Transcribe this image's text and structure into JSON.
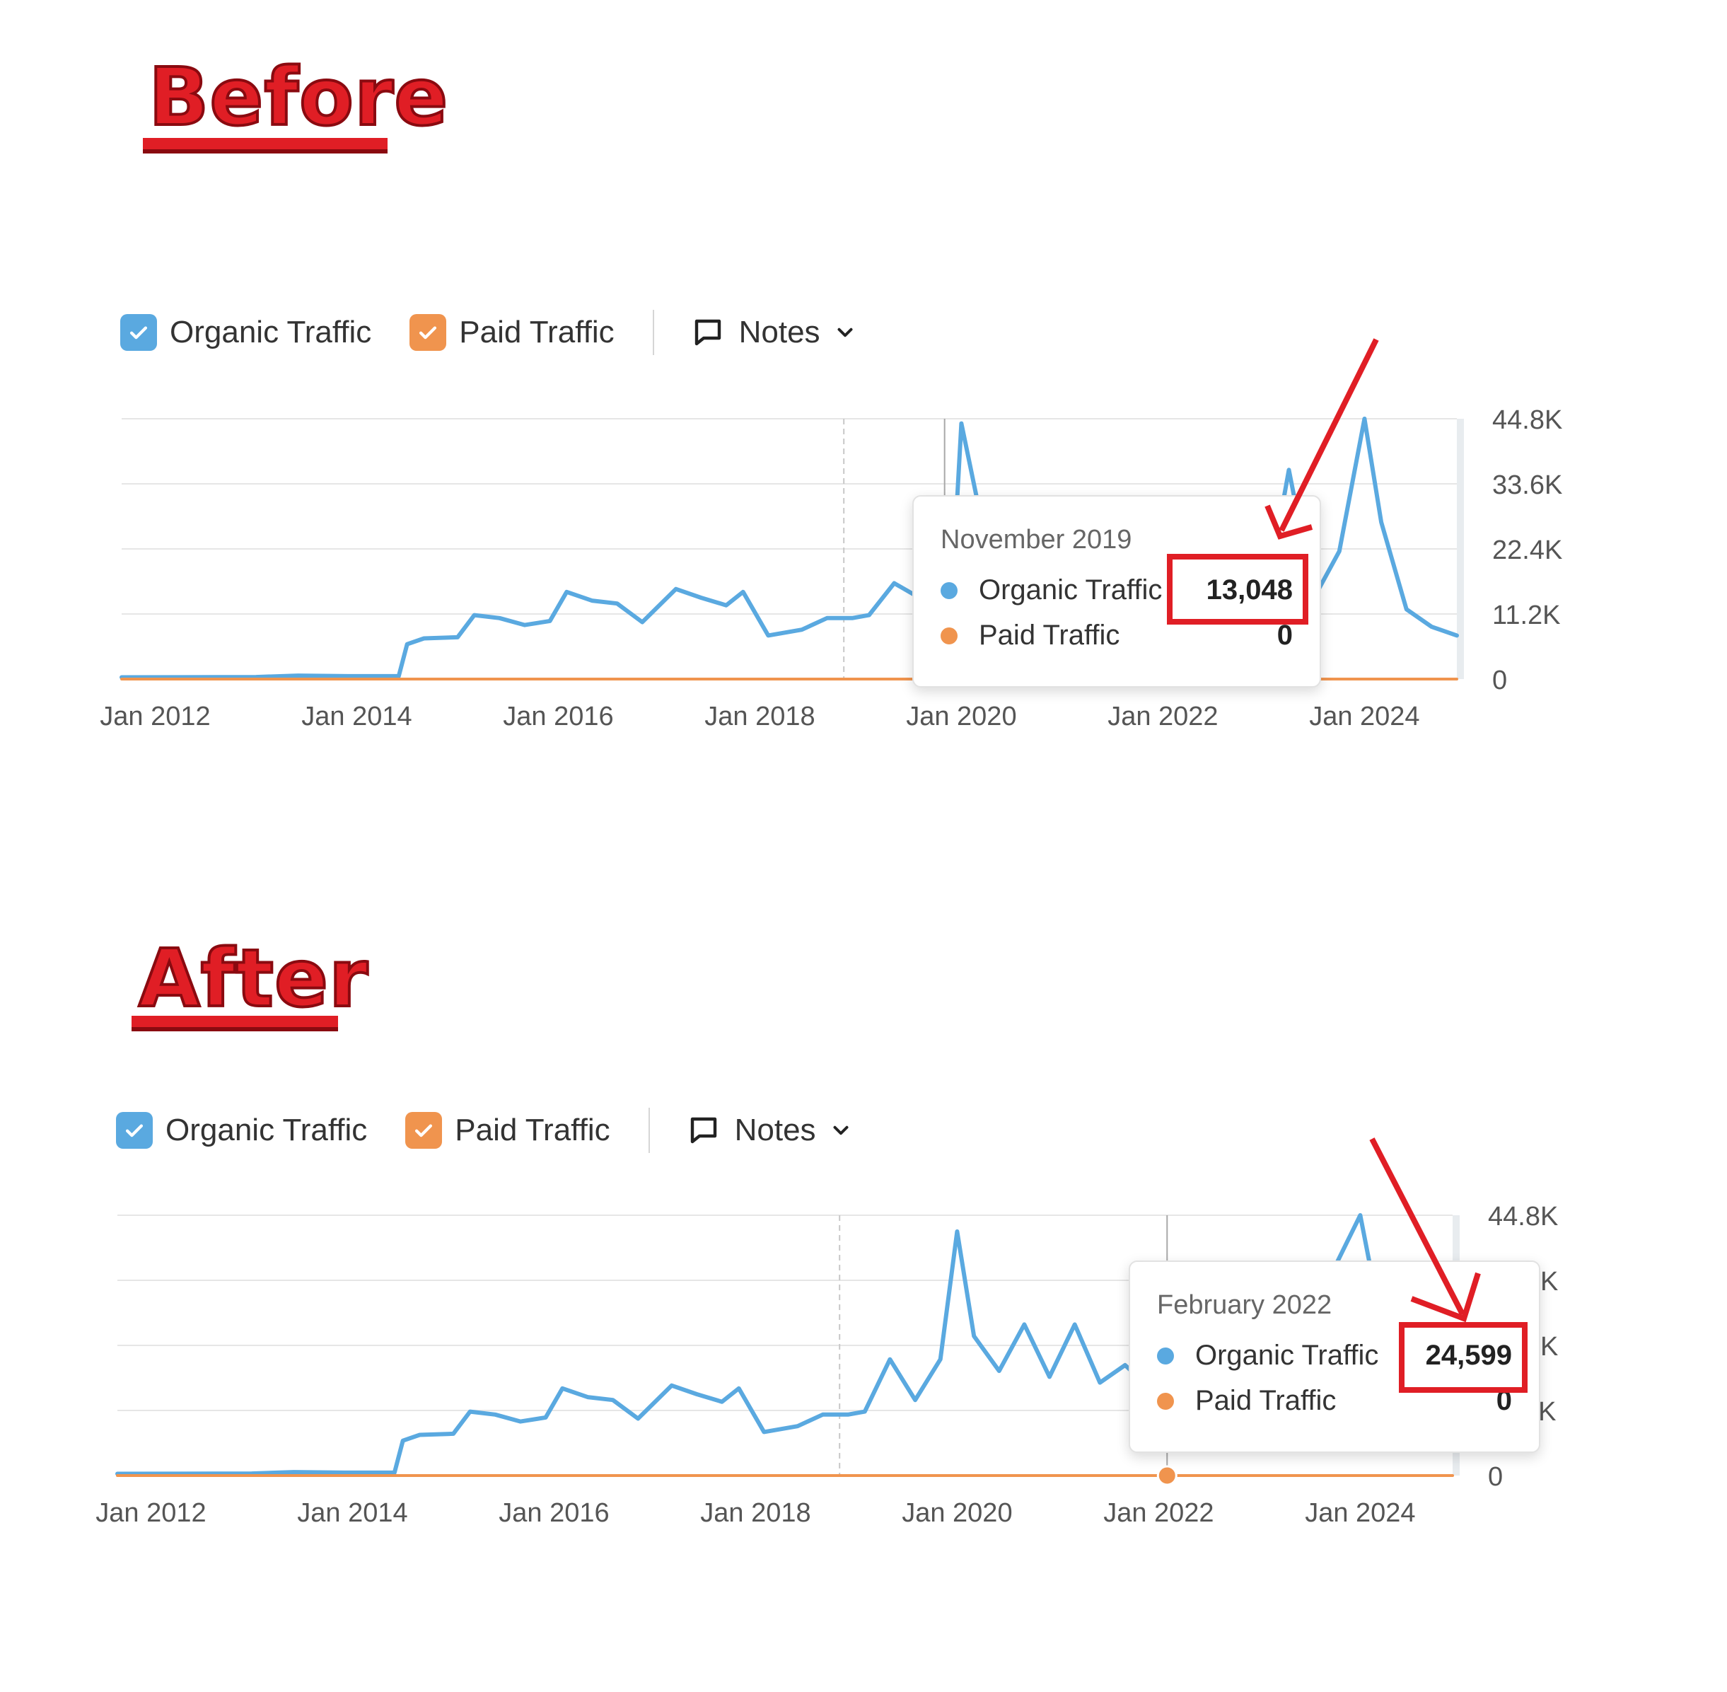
{
  "colors": {
    "organic": "#5aa9e0",
    "paid": "#f0944e",
    "highlight": "#e01e25",
    "grid": "#e6e6e6"
  },
  "panels": [
    {
      "heading": "Before",
      "legend": {
        "organic_label": "Organic Traffic",
        "paid_label": "Paid Traffic",
        "notes_label": "Notes"
      },
      "tooltip": {
        "date": "November 2019",
        "organic_label": "Organic Traffic",
        "organic_value": "13,048",
        "paid_label": "Paid Traffic",
        "paid_value": "0"
      }
    },
    {
      "heading": "After",
      "legend": {
        "organic_label": "Organic Traffic",
        "paid_label": "Paid Traffic",
        "notes_label": "Notes"
      },
      "tooltip": {
        "date": "February 2022",
        "organic_label": "Organic Traffic",
        "organic_value": "24,599",
        "paid_label": "Paid Traffic",
        "paid_value": "0"
      }
    }
  ],
  "chart_data": [
    {
      "type": "line",
      "title": "",
      "y_ticks": [
        "0",
        "11.2K",
        "22.4K",
        "33.6K",
        "44.8K"
      ],
      "ylim": [
        0,
        44800
      ],
      "xlim": [
        "2011-09",
        "2024-12"
      ],
      "x_ticks": [
        "Jan 2012",
        "Jan 2014",
        "Jan 2016",
        "Jan 2018",
        "Jan 2020",
        "Jan 2022",
        "Jan 2024"
      ],
      "highlighted_date": "2019-11",
      "series": [
        {
          "name": "Organic Traffic",
          "points": [
            [
              "2011-09",
              300
            ],
            [
              "2013-01",
              350
            ],
            [
              "2013-06",
              600
            ],
            [
              "2013-12",
              500
            ],
            [
              "2014-06",
              500
            ],
            [
              "2014-07",
              6000
            ],
            [
              "2014-09",
              7000
            ],
            [
              "2015-01",
              7200
            ],
            [
              "2015-03",
              11000
            ],
            [
              "2015-06",
              10500
            ],
            [
              "2015-09",
              9300
            ],
            [
              "2015-12",
              10000
            ],
            [
              "2016-02",
              15000
            ],
            [
              "2016-05",
              13500
            ],
            [
              "2016-08",
              13000
            ],
            [
              "2016-11",
              9800
            ],
            [
              "2017-03",
              15500
            ],
            [
              "2017-06",
              14000
            ],
            [
              "2017-09",
              12700
            ],
            [
              "2017-11",
              15000
            ],
            [
              "2018-02",
              7500
            ],
            [
              "2018-06",
              8500
            ],
            [
              "2018-09",
              10500
            ],
            [
              "2018-12",
              10500
            ],
            [
              "2019-02",
              11000
            ],
            [
              "2019-05",
              16500
            ],
            [
              "2019-08",
              14000
            ],
            [
              "2019-11",
              13048
            ],
            [
              "2019-12",
              18000
            ],
            [
              "2020-01",
              44000
            ],
            [
              "2020-03",
              30000
            ],
            [
              "2020-06",
              26000
            ],
            [
              "2023-01",
              12000
            ],
            [
              "2023-04",
              36000
            ],
            [
              "2023-07",
              14000
            ],
            [
              "2023-10",
              22000
            ],
            [
              "2024-01",
              44800
            ],
            [
              "2024-03",
              27000
            ],
            [
              "2024-06",
              12000
            ],
            [
              "2024-09",
              9000
            ],
            [
              "2024-12",
              7500
            ]
          ]
        },
        {
          "name": "Paid Traffic",
          "points": [
            [
              "2011-09",
              0
            ],
            [
              "2024-12",
              0
            ]
          ]
        }
      ]
    },
    {
      "type": "line",
      "title": "",
      "y_ticks": [
        "0",
        "11.2K",
        "22.4K",
        "33.6K",
        "44.8K"
      ],
      "ylim": [
        0,
        44800
      ],
      "xlim": [
        "2011-09",
        "2024-12"
      ],
      "x_ticks": [
        "Jan 2012",
        "Jan 2014",
        "Jan 2016",
        "Jan 2018",
        "Jan 2020",
        "Jan 2022",
        "Jan 2024"
      ],
      "highlighted_date": "2022-02",
      "series": [
        {
          "name": "Organic Traffic",
          "points": [
            [
              "2011-09",
              300
            ],
            [
              "2013-01",
              350
            ],
            [
              "2013-06",
              600
            ],
            [
              "2013-12",
              500
            ],
            [
              "2014-06",
              500
            ],
            [
              "2014-07",
              6000
            ],
            [
              "2014-09",
              7000
            ],
            [
              "2015-01",
              7200
            ],
            [
              "2015-03",
              11000
            ],
            [
              "2015-06",
              10500
            ],
            [
              "2015-09",
              9300
            ],
            [
              "2015-12",
              10000
            ],
            [
              "2016-02",
              15000
            ],
            [
              "2016-05",
              13500
            ],
            [
              "2016-08",
              13000
            ],
            [
              "2016-11",
              9800
            ],
            [
              "2017-03",
              15500
            ],
            [
              "2017-06",
              14000
            ],
            [
              "2017-09",
              12700
            ],
            [
              "2017-11",
              15000
            ],
            [
              "2018-02",
              7500
            ],
            [
              "2018-06",
              8500
            ],
            [
              "2018-09",
              10500
            ],
            [
              "2018-12",
              10500
            ],
            [
              "2019-02",
              11000
            ],
            [
              "2019-05",
              20000
            ],
            [
              "2019-08",
              13000
            ],
            [
              "2019-11",
              20000
            ],
            [
              "2020-01",
              42000
            ],
            [
              "2020-03",
              24000
            ],
            [
              "2020-06",
              18000
            ],
            [
              "2020-09",
              26000
            ],
            [
              "2020-12",
              17000
            ],
            [
              "2021-03",
              26000
            ],
            [
              "2021-06",
              16000
            ],
            [
              "2021-09",
              19000
            ],
            [
              "2021-12",
              15000
            ],
            [
              "2022-02",
              24599
            ],
            [
              "2022-06",
              18000
            ],
            [
              "2023-01",
              9000
            ],
            [
              "2023-04",
              30000
            ],
            [
              "2023-07",
              22000
            ],
            [
              "2023-10",
              36000
            ],
            [
              "2024-01",
              44800
            ],
            [
              "2024-03",
              30000
            ],
            [
              "2024-06",
              15000
            ],
            [
              "2024-09",
              10000
            ],
            [
              "2024-12",
              8000
            ]
          ]
        },
        {
          "name": "Paid Traffic",
          "points": [
            [
              "2011-09",
              0
            ],
            [
              "2024-12",
              0
            ]
          ]
        }
      ]
    }
  ]
}
